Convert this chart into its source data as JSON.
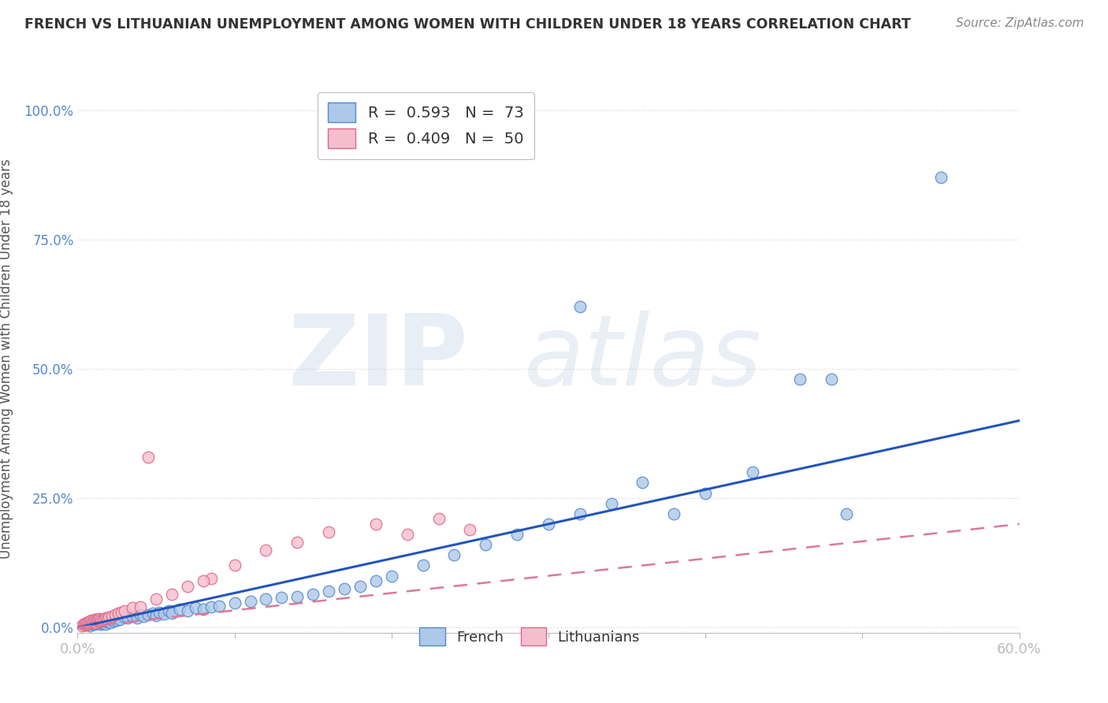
{
  "title": "FRENCH VS LITHUANIAN UNEMPLOYMENT AMONG WOMEN WITH CHILDREN UNDER 18 YEARS CORRELATION CHART",
  "source": "Source: ZipAtlas.com",
  "ylabel": "Unemployment Among Women with Children Under 18 years",
  "yticks": [
    "0.0%",
    "25.0%",
    "50.0%",
    "75.0%",
    "100.0%"
  ],
  "ytick_values": [
    0.0,
    0.25,
    0.5,
    0.75,
    1.0
  ],
  "xlim": [
    0.0,
    0.6
  ],
  "ylim": [
    -0.01,
    1.05
  ],
  "french_color": "#adc8e8",
  "french_edge_color": "#5588cc",
  "lithuanian_color": "#f5bece",
  "lithuanian_edge_color": "#dd6688",
  "trendline_french_color": "#2255bb",
  "trendline_lithuanian_color": "#dd7799",
  "legend_french_label": "R =  0.593   N =  73",
  "legend_lithuanian_label": "R =  0.409   N =  50",
  "watermark_zip": "ZIP",
  "watermark_atlas": "atlas",
  "background_color": "#ffffff",
  "grid_color": "#cccccc",
  "title_color": "#333333",
  "tick_label_color": "#5588cc",
  "french_x": [
    0.005,
    0.007,
    0.008,
    0.009,
    0.01,
    0.01,
    0.011,
    0.012,
    0.012,
    0.013,
    0.014,
    0.015,
    0.015,
    0.016,
    0.016,
    0.017,
    0.017,
    0.018,
    0.018,
    0.019,
    0.02,
    0.021,
    0.022,
    0.023,
    0.024,
    0.025,
    0.027,
    0.03,
    0.032,
    0.035,
    0.038,
    0.04,
    0.042,
    0.045,
    0.048,
    0.05,
    0.052,
    0.055,
    0.058,
    0.06,
    0.065,
    0.07,
    0.075,
    0.08,
    0.085,
    0.09,
    0.1,
    0.11,
    0.12,
    0.13,
    0.14,
    0.15,
    0.16,
    0.17,
    0.18,
    0.19,
    0.2,
    0.22,
    0.24,
    0.26,
    0.28,
    0.3,
    0.32,
    0.34,
    0.36,
    0.38,
    0.4,
    0.43,
    0.46,
    0.49,
    0.32,
    0.48,
    0.55
  ],
  "french_y": [
    0.005,
    0.008,
    0.004,
    0.012,
    0.006,
    0.01,
    0.007,
    0.009,
    0.015,
    0.008,
    0.011,
    0.013,
    0.006,
    0.008,
    0.014,
    0.01,
    0.012,
    0.007,
    0.016,
    0.011,
    0.013,
    0.009,
    0.015,
    0.012,
    0.018,
    0.014,
    0.016,
    0.02,
    0.018,
    0.022,
    0.019,
    0.025,
    0.021,
    0.024,
    0.028,
    0.023,
    0.03,
    0.027,
    0.032,
    0.028,
    0.035,
    0.033,
    0.038,
    0.036,
    0.04,
    0.042,
    0.048,
    0.05,
    0.055,
    0.058,
    0.06,
    0.065,
    0.07,
    0.075,
    0.08,
    0.09,
    0.1,
    0.12,
    0.14,
    0.16,
    0.18,
    0.2,
    0.22,
    0.24,
    0.28,
    0.22,
    0.26,
    0.3,
    0.48,
    0.22,
    0.62,
    0.48,
    0.87
  ],
  "lithuanian_x": [
    0.003,
    0.004,
    0.005,
    0.005,
    0.006,
    0.006,
    0.007,
    0.007,
    0.008,
    0.008,
    0.009,
    0.009,
    0.01,
    0.01,
    0.011,
    0.011,
    0.012,
    0.012,
    0.013,
    0.013,
    0.014,
    0.014,
    0.015,
    0.015,
    0.016,
    0.017,
    0.018,
    0.019,
    0.02,
    0.022,
    0.024,
    0.026,
    0.028,
    0.03,
    0.035,
    0.04,
    0.05,
    0.06,
    0.07,
    0.085,
    0.1,
    0.12,
    0.14,
    0.16,
    0.19,
    0.21,
    0.23,
    0.25,
    0.08,
    0.045
  ],
  "lithuanian_y": [
    0.004,
    0.006,
    0.005,
    0.008,
    0.007,
    0.01,
    0.006,
    0.009,
    0.008,
    0.012,
    0.01,
    0.014,
    0.009,
    0.013,
    0.011,
    0.015,
    0.01,
    0.014,
    0.012,
    0.016,
    0.013,
    0.017,
    0.012,
    0.016,
    0.014,
    0.015,
    0.018,
    0.017,
    0.02,
    0.022,
    0.025,
    0.028,
    0.03,
    0.032,
    0.038,
    0.04,
    0.055,
    0.065,
    0.08,
    0.095,
    0.12,
    0.15,
    0.165,
    0.185,
    0.2,
    0.18,
    0.21,
    0.19,
    0.09,
    0.33
  ]
}
